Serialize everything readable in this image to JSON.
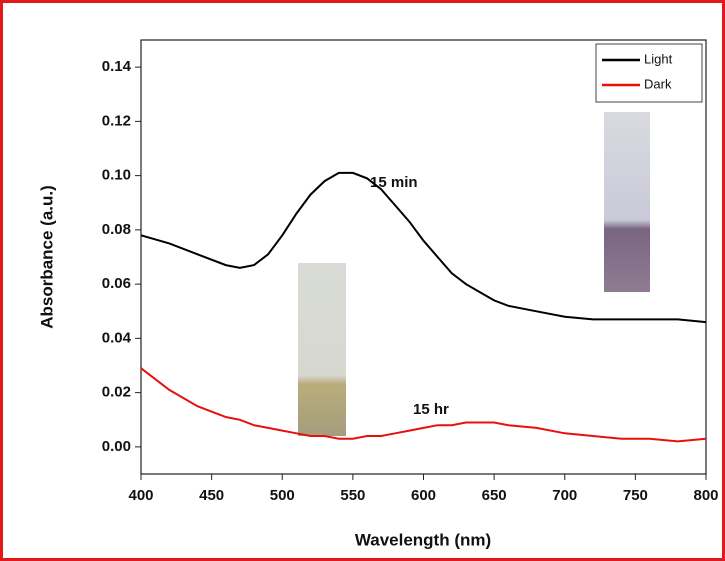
{
  "chart_data": {
    "type": "line",
    "x_label": "Wavelength (nm)",
    "y_label": "Absorbance (a.u.)",
    "x": [
      400,
      420,
      440,
      460,
      470,
      480,
      490,
      500,
      510,
      520,
      530,
      540,
      550,
      560,
      570,
      580,
      590,
      600,
      610,
      620,
      630,
      640,
      650,
      660,
      680,
      700,
      720,
      740,
      760,
      780,
      800
    ],
    "series": [
      {
        "name": "Light",
        "color": "#000000",
        "values": [
          0.078,
          0.075,
          0.071,
          0.067,
          0.066,
          0.067,
          0.071,
          0.078,
          0.086,
          0.093,
          0.098,
          0.101,
          0.101,
          0.099,
          0.095,
          0.089,
          0.083,
          0.076,
          0.07,
          0.064,
          0.06,
          0.057,
          0.054,
          0.052,
          0.05,
          0.048,
          0.047,
          0.047,
          0.047,
          0.047,
          0.046
        ]
      },
      {
        "name": "Dark",
        "color": "#e8100f",
        "values": [
          0.029,
          0.021,
          0.015,
          0.011,
          0.01,
          0.008,
          0.007,
          0.006,
          0.005,
          0.004,
          0.004,
          0.003,
          0.003,
          0.004,
          0.004,
          0.005,
          0.006,
          0.007,
          0.008,
          0.008,
          0.009,
          0.009,
          0.009,
          0.008,
          0.007,
          0.005,
          0.004,
          0.003,
          0.003,
          0.002,
          0.003
        ]
      }
    ],
    "annotations": [
      "15 min",
      "15 hr"
    ],
    "xlim": [
      400,
      800
    ],
    "xticks": [
      400,
      450,
      500,
      550,
      600,
      650,
      700,
      750,
      800
    ],
    "ylim": [
      -0.01,
      0.15
    ],
    "yticks": [
      {
        "value": 0,
        "label": "0.00"
      },
      {
        "value": 0.02,
        "label": "0.02"
      },
      {
        "value": 0.04,
        "label": "0.04"
      },
      {
        "value": 0.06,
        "label": "0.06"
      },
      {
        "value": 0.08,
        "label": "0.08"
      },
      {
        "value": 0.1,
        "label": "0.10"
      },
      {
        "value": 0.12,
        "label": "0.12"
      },
      {
        "value": 0.14,
        "label": "0.14"
      }
    ],
    "legend": "upper right"
  }
}
